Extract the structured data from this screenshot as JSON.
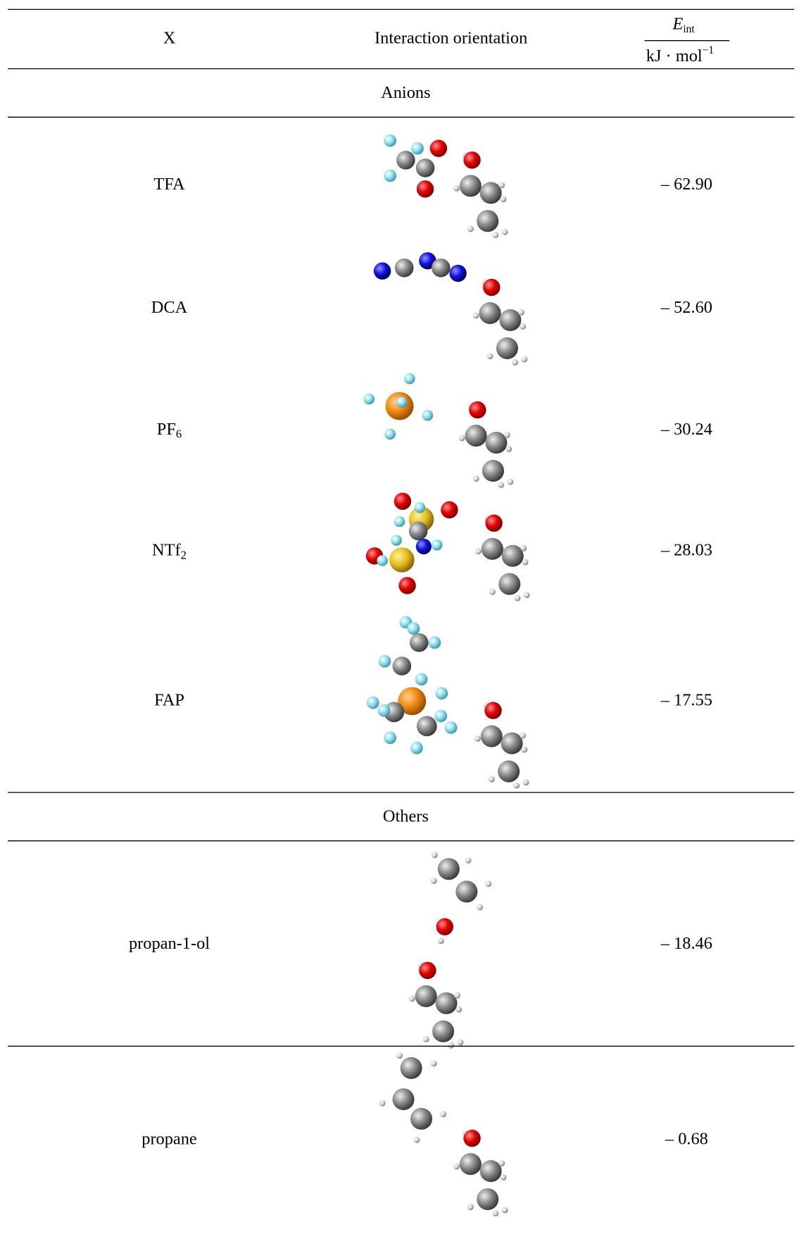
{
  "header": {
    "x": "X",
    "orientation": "Interaction orientation",
    "energy": {
      "symbol": "E",
      "subscript": "int",
      "unit": "kJ · mol",
      "superscript": "−1"
    }
  },
  "sections": [
    {
      "title": "Anions",
      "rows": [
        {
          "x": "TFA",
          "energy": "– 62.90"
        },
        {
          "x": "DCA",
          "energy": "– 52.60"
        },
        {
          "x": "PF",
          "x_sub": "6",
          "energy": "– 30.24"
        },
        {
          "x": "NTf",
          "x_sub": "2",
          "energy": "– 28.03"
        },
        {
          "x": "FAP",
          "energy": "– 17.55"
        }
      ]
    },
    {
      "title": "Others",
      "rows": [
        {
          "x": "propan-1-ol",
          "energy": "– 18.46"
        },
        {
          "x": "propane",
          "energy": "– 0.68"
        }
      ]
    }
  ]
}
